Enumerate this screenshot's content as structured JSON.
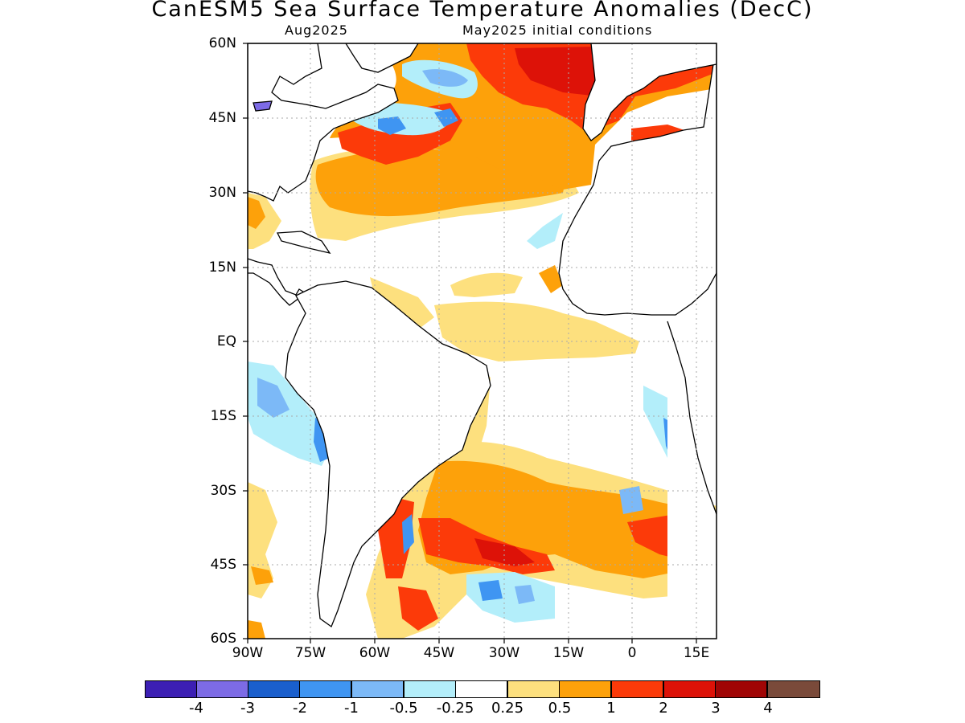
{
  "title": "CanESM5 Sea Surface Temperature Anomalies (DecC)",
  "subtitle_left": "Aug2025",
  "subtitle_right": "May2025 initial conditions",
  "y_ticks": [
    "60N",
    "45N",
    "30N",
    "15N",
    "EQ",
    "15S",
    "30S",
    "45S",
    "60S"
  ],
  "x_ticks": [
    "90W",
    "75W",
    "60W",
    "45W",
    "30W",
    "15W",
    "0",
    "15E"
  ],
  "colorbar": {
    "colors": [
      "#3c1fb4",
      "#7d6be6",
      "#1a5fcd",
      "#3f95f2",
      "#7cb9f7",
      "#b3eefa",
      "#ffffff",
      "#fde07e",
      "#fda10a",
      "#fc3a09",
      "#dd1208",
      "#a00505",
      "#7a4a3a"
    ],
    "labels": [
      "-4",
      "-3",
      "-2",
      "-1",
      "-0.5",
      "-0.25",
      "0.25",
      "0.5",
      "1",
      "2",
      "3",
      "4"
    ]
  },
  "colors": {
    "land": "#ffffff",
    "coastline": "#000000",
    "grid": "#999999",
    "warm_light": "#fde07e",
    "warm_mid": "#fda10a",
    "warm_strong": "#fc3a09",
    "warm_deep": "#dd1208",
    "cool_light": "#b3eefa",
    "cool_mid": "#7cb9f7",
    "cool_strong": "#3f95f2",
    "cool_deep": "#1a5fcd"
  }
}
